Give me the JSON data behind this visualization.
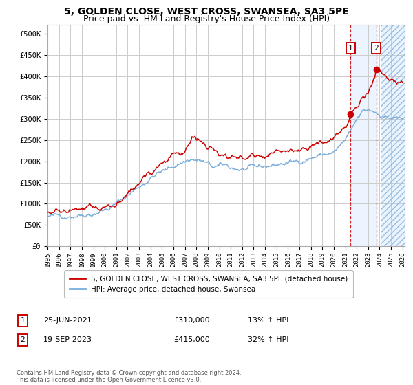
{
  "title": "5, GOLDEN CLOSE, WEST CROSS, SWANSEA, SA3 5PE",
  "subtitle": "Price paid vs. HM Land Registry's House Price Index (HPI)",
  "title_fontsize": 10,
  "subtitle_fontsize": 9,
  "legend_label_red": "5, GOLDEN CLOSE, WEST CROSS, SWANSEA, SA3 5PE (detached house)",
  "legend_label_blue": "HPI: Average price, detached house, Swansea",
  "annotation1_date": "25-JUN-2021",
  "annotation1_price": "£310,000",
  "annotation1_hpi": "13% ↑ HPI",
  "annotation2_date": "19-SEP-2023",
  "annotation2_price": "£415,000",
  "annotation2_hpi": "32% ↑ HPI",
  "footer": "Contains HM Land Registry data © Crown copyright and database right 2024.\nThis data is licensed under the Open Government Licence v3.0.",
  "xlim_start": 1995.0,
  "xlim_end": 2026.2,
  "ylim_min": 0,
  "ylim_max": 520000,
  "yticks": [
    0,
    50000,
    100000,
    150000,
    200000,
    250000,
    300000,
    350000,
    400000,
    450000,
    500000
  ],
  "xticks": [
    1995,
    1996,
    1997,
    1998,
    1999,
    2000,
    2001,
    2002,
    2003,
    2004,
    2005,
    2006,
    2007,
    2008,
    2009,
    2010,
    2011,
    2012,
    2013,
    2014,
    2015,
    2016,
    2017,
    2018,
    2019,
    2020,
    2021,
    2022,
    2023,
    2024,
    2025,
    2026
  ],
  "sale1_x": 2021.48,
  "sale1_y": 310000,
  "sale2_x": 2023.72,
  "sale2_y": 415000,
  "hatch_start": 2024.08,
  "hatch_end": 2026.2,
  "shade_start": 2021.48,
  "shade_end": 2023.72,
  "red_color": "#cc0000",
  "blue_color": "#7aaddc",
  "grid_color": "#cccccc",
  "bg_color": "#ffffff",
  "shade_color": "#ddeeff",
  "hatch_color": "#ddeeff"
}
